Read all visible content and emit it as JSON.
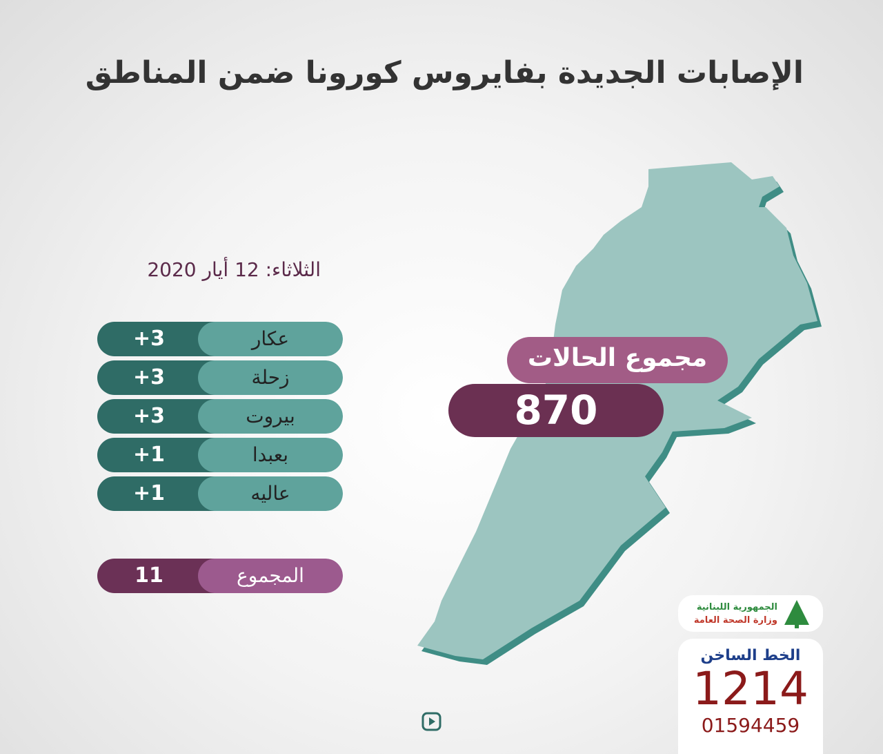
{
  "header": {
    "title": "الإصابات الجديدة بفايروس كورونا ضمن المناطق"
  },
  "date": "الثلاثاء: 12 أيار 2020",
  "table": {
    "rows": [
      [
        "عكار",
        "+3"
      ],
      [
        "زحلة",
        "+3"
      ],
      [
        "بيروت",
        "+3"
      ],
      [
        "بعبدا",
        "+1"
      ],
      [
        "عاليه",
        "+1"
      ]
    ],
    "total": [
      "المجموع",
      "11"
    ]
  },
  "cumulative": {
    "label": "مجموع الحالات",
    "value": "870"
  },
  "logo": {
    "line1": "الجمهورية اللبنانية",
    "line2": "وزارة الصحة العامة"
  },
  "hotline": {
    "label": "الخط الساخن",
    "number": "1214",
    "phone": "01594459"
  }
}
